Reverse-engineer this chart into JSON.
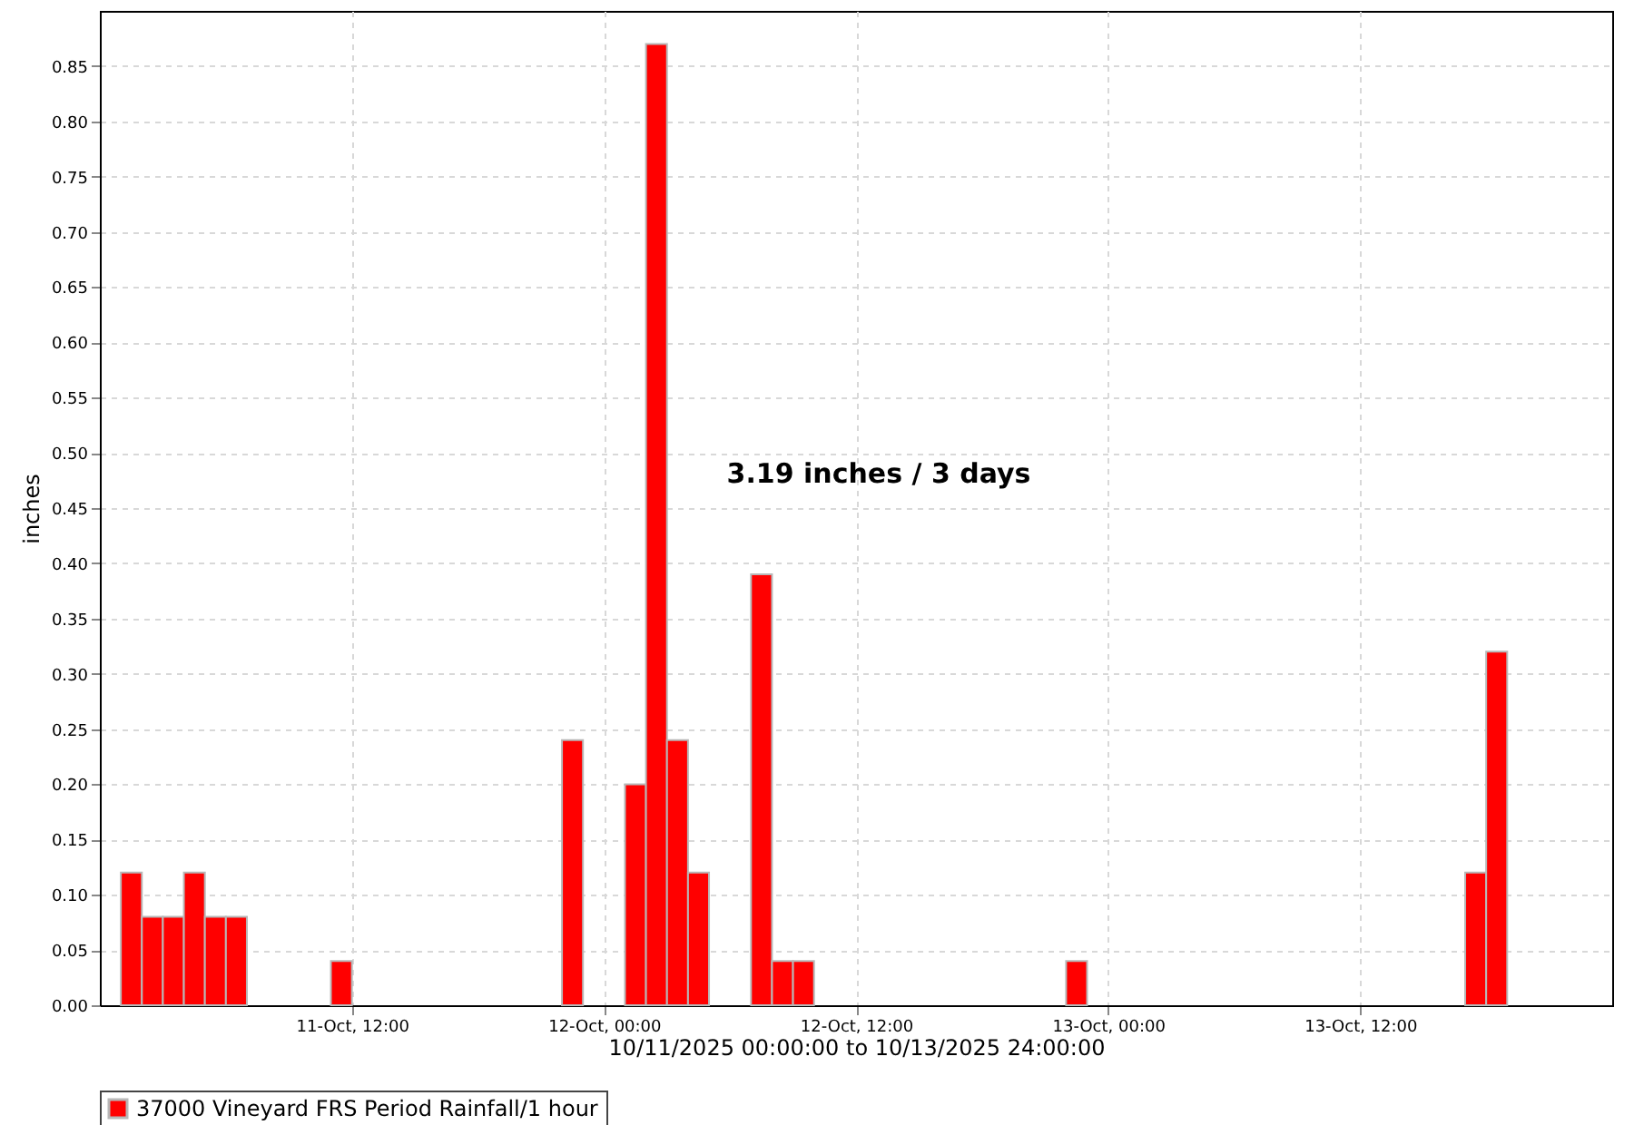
{
  "chart_data": {
    "type": "bar",
    "xlabel": "10/11/2025 00:00:00 to 10/13/2025 24:00:00",
    "ylabel": "inches",
    "annotations": [
      "3.19 inches / 3 days"
    ],
    "x": [
      "2025-10-11T01:30",
      "2025-10-11T02:30",
      "2025-10-11T03:30",
      "2025-10-11T04:30",
      "2025-10-11T05:30",
      "2025-10-11T06:30",
      "2025-10-11T11:30",
      "2025-10-11T22:30",
      "2025-10-12T01:30",
      "2025-10-12T02:30",
      "2025-10-12T03:30",
      "2025-10-12T04:30",
      "2025-10-12T07:30",
      "2025-10-12T08:30",
      "2025-10-12T09:30",
      "2025-10-12T22:30",
      "2025-10-13T17:30",
      "2025-10-13T18:30"
    ],
    "series": [
      {
        "name": "37000 Vineyard FRS Period Rainfall/1 hour",
        "color": "#ff0000",
        "values": [
          0.12,
          0.08,
          0.08,
          0.12,
          0.08,
          0.08,
          0.04,
          0.24,
          0.2,
          0.87,
          0.24,
          0.12,
          0.39,
          0.04,
          0.04,
          0.04,
          0.12,
          0.32
        ]
      }
    ],
    "xlim": [
      "2025-10-11T00:00",
      "2025-10-14T00:00"
    ],
    "xticks": [
      {
        "value": "2025-10-11T12:00",
        "label": "11-Oct, 12:00"
      },
      {
        "value": "2025-10-12T00:00",
        "label": "12-Oct, 00:00"
      },
      {
        "value": "2025-10-12T12:00",
        "label": "12-Oct, 12:00"
      },
      {
        "value": "2025-10-13T00:00",
        "label": "13-Oct, 00:00"
      },
      {
        "value": "2025-10-13T12:00",
        "label": "13-Oct, 12:00"
      }
    ],
    "ylim": [
      0,
      0.9
    ],
    "yticks": [
      {
        "value": 0,
        "label": "0.00"
      },
      {
        "value": 0.05,
        "label": "0.05"
      },
      {
        "value": 0.1,
        "label": "0.10"
      },
      {
        "value": 0.15,
        "label": "0.15"
      },
      {
        "value": 0.2,
        "label": "0.20"
      },
      {
        "value": 0.25,
        "label": "0.25"
      },
      {
        "value": 0.3,
        "label": "0.30"
      },
      {
        "value": 0.35,
        "label": "0.35"
      },
      {
        "value": 0.4,
        "label": "0.40"
      },
      {
        "value": 0.45,
        "label": "0.45"
      },
      {
        "value": 0.5,
        "label": "0.50"
      },
      {
        "value": 0.55,
        "label": "0.55"
      },
      {
        "value": 0.6,
        "label": "0.60"
      },
      {
        "value": 0.65,
        "label": "0.65"
      },
      {
        "value": 0.7,
        "label": "0.70"
      },
      {
        "value": 0.75,
        "label": "0.75"
      },
      {
        "value": 0.8,
        "label": "0.80"
      },
      {
        "value": 0.85,
        "label": "0.85"
      }
    ],
    "grid": true,
    "legend": "bottom"
  }
}
